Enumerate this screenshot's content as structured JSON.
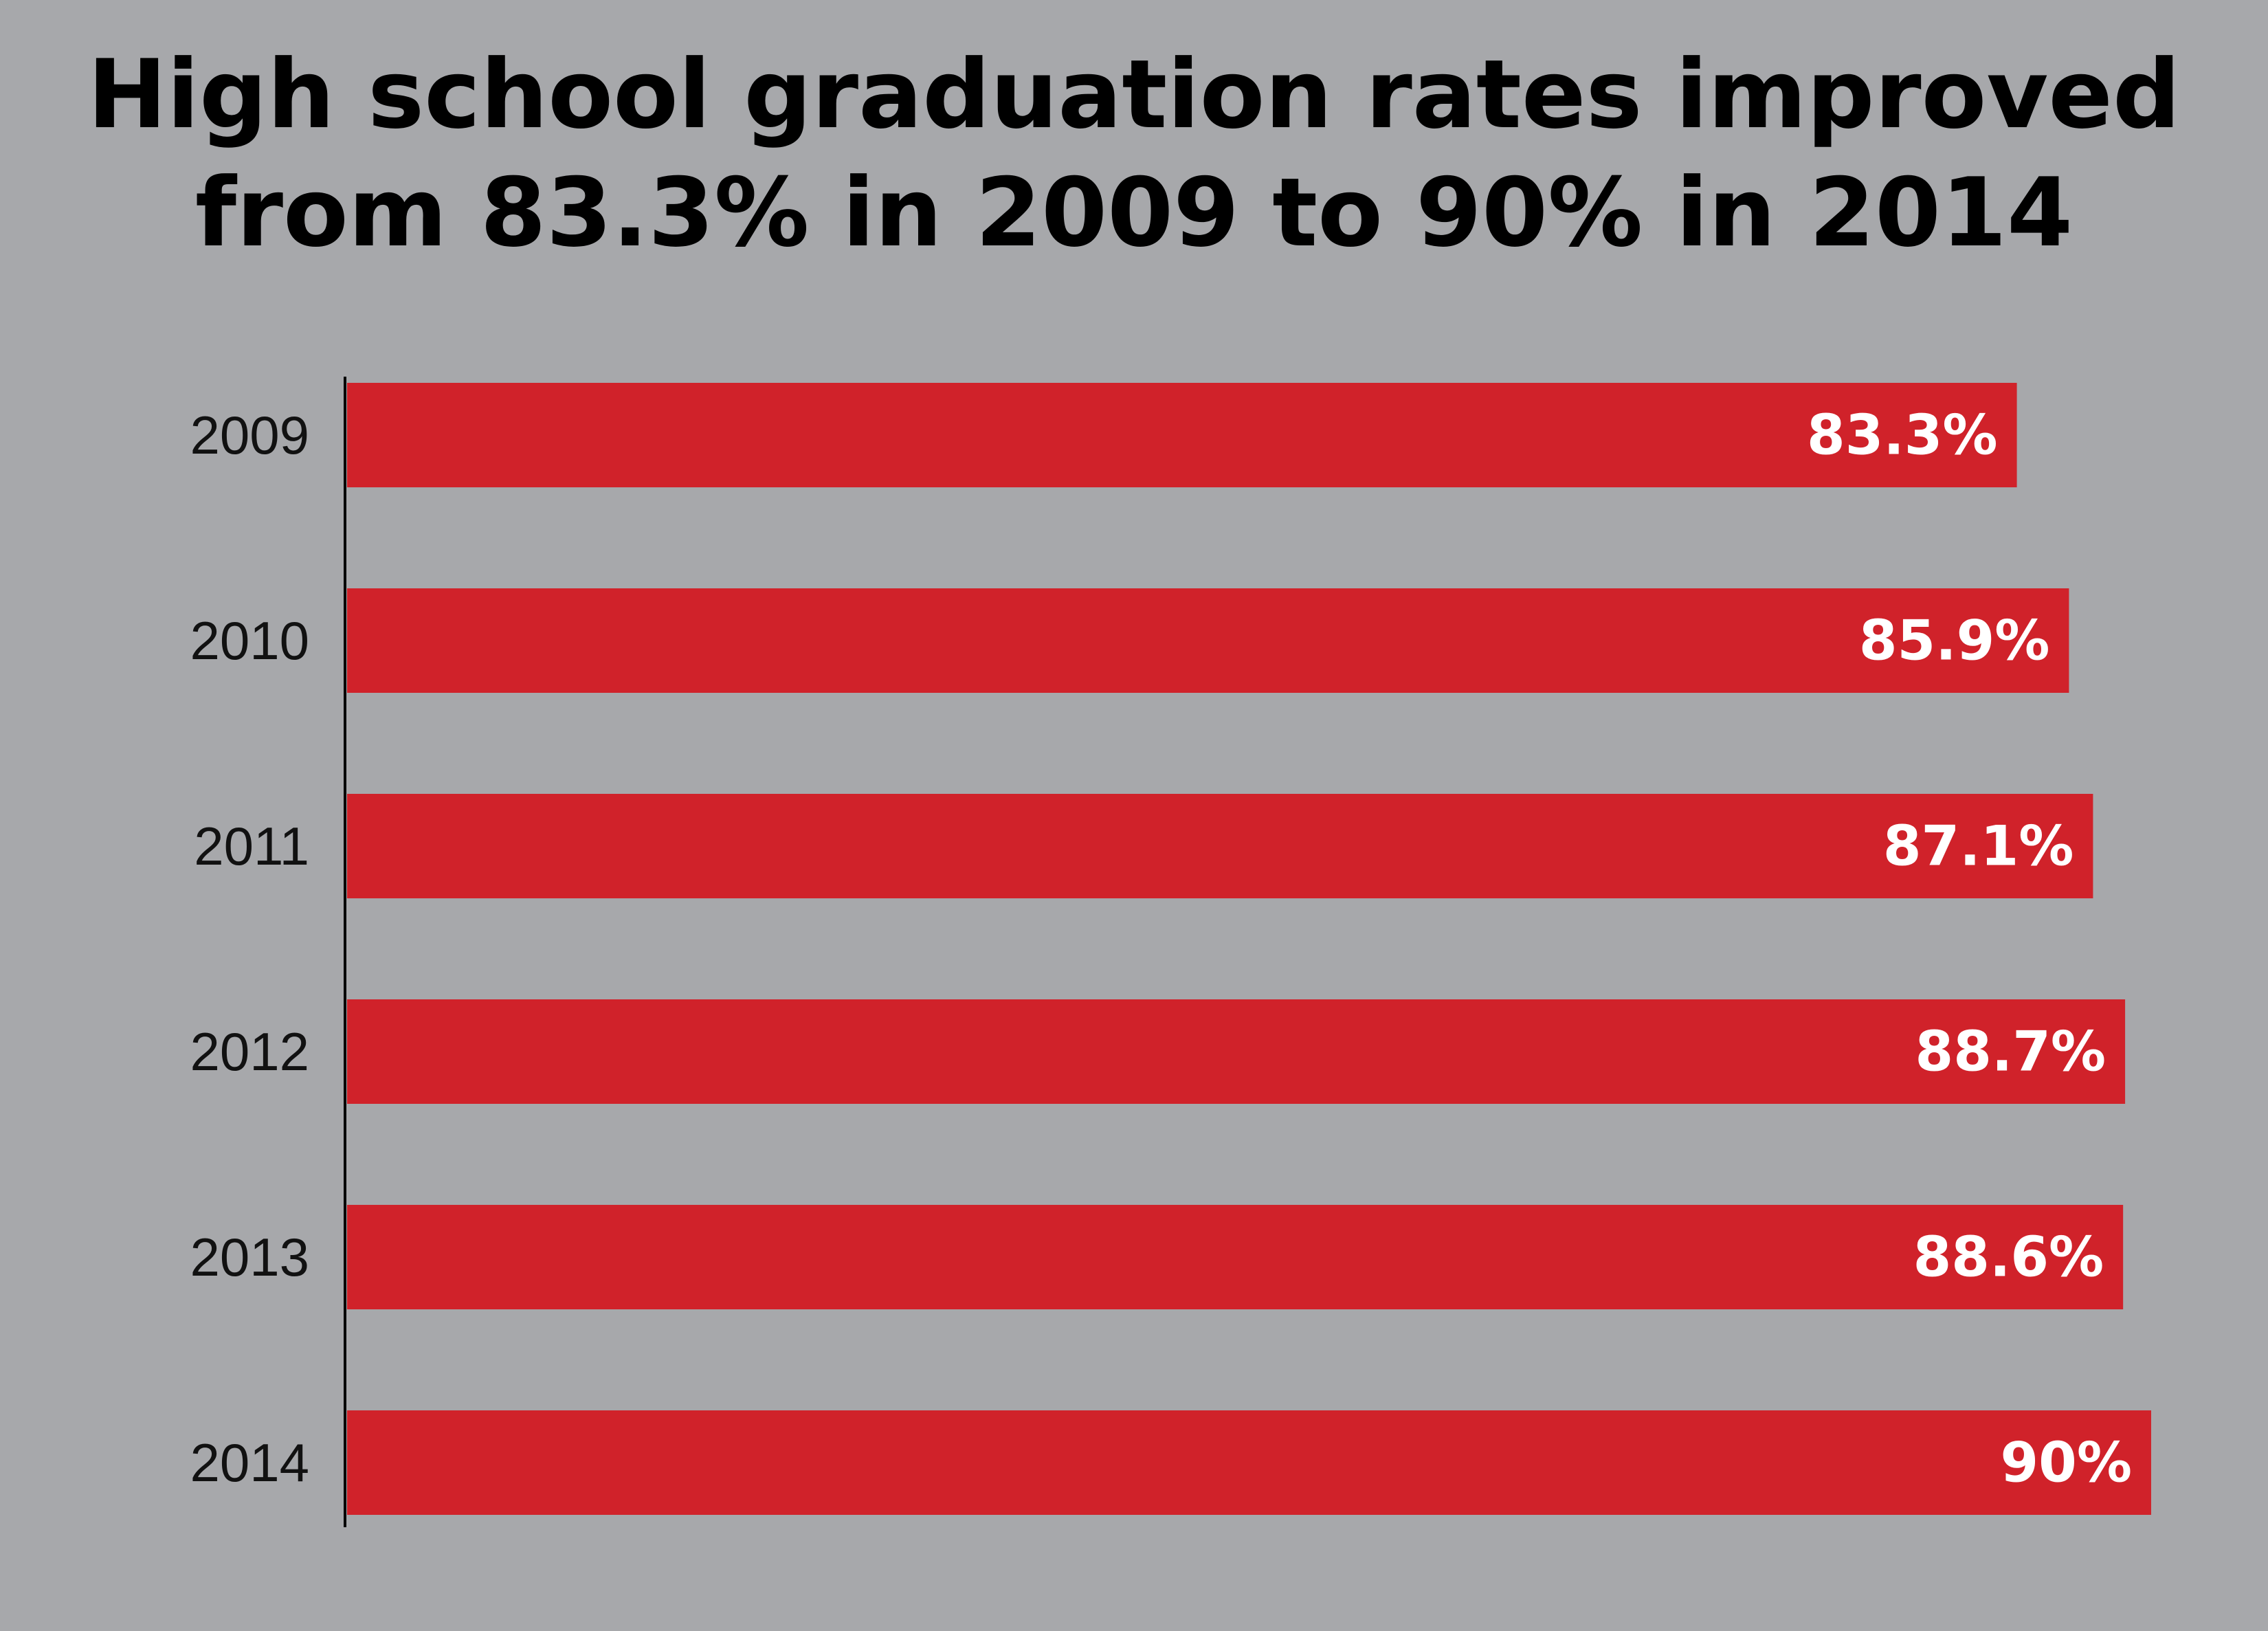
{
  "title": {
    "line1": "High school graduation rates improved",
    "line2": "from 83.3% in 2009 to 90% in 2014"
  },
  "colors": {
    "background": "#a7a8ab",
    "bar": "#d0222a",
    "axis": "#000000",
    "value_text": "#ffffff",
    "title_text": "#000000"
  },
  "chart_data": {
    "type": "bar",
    "orientation": "horizontal",
    "title": "High school graduation rates improved from 83.3% in 2009 to 90% in 2014",
    "categories": [
      "2009",
      "2010",
      "2011",
      "2012",
      "2013",
      "2014"
    ],
    "values": [
      83.3,
      85.9,
      87.1,
      88.7,
      88.6,
      90
    ],
    "value_labels": [
      "83.3%",
      "85.9%",
      "87.1%",
      "88.7%",
      "88.6%",
      "90%"
    ],
    "xlabel": "",
    "ylabel": "",
    "grid": false,
    "legend": "none"
  }
}
